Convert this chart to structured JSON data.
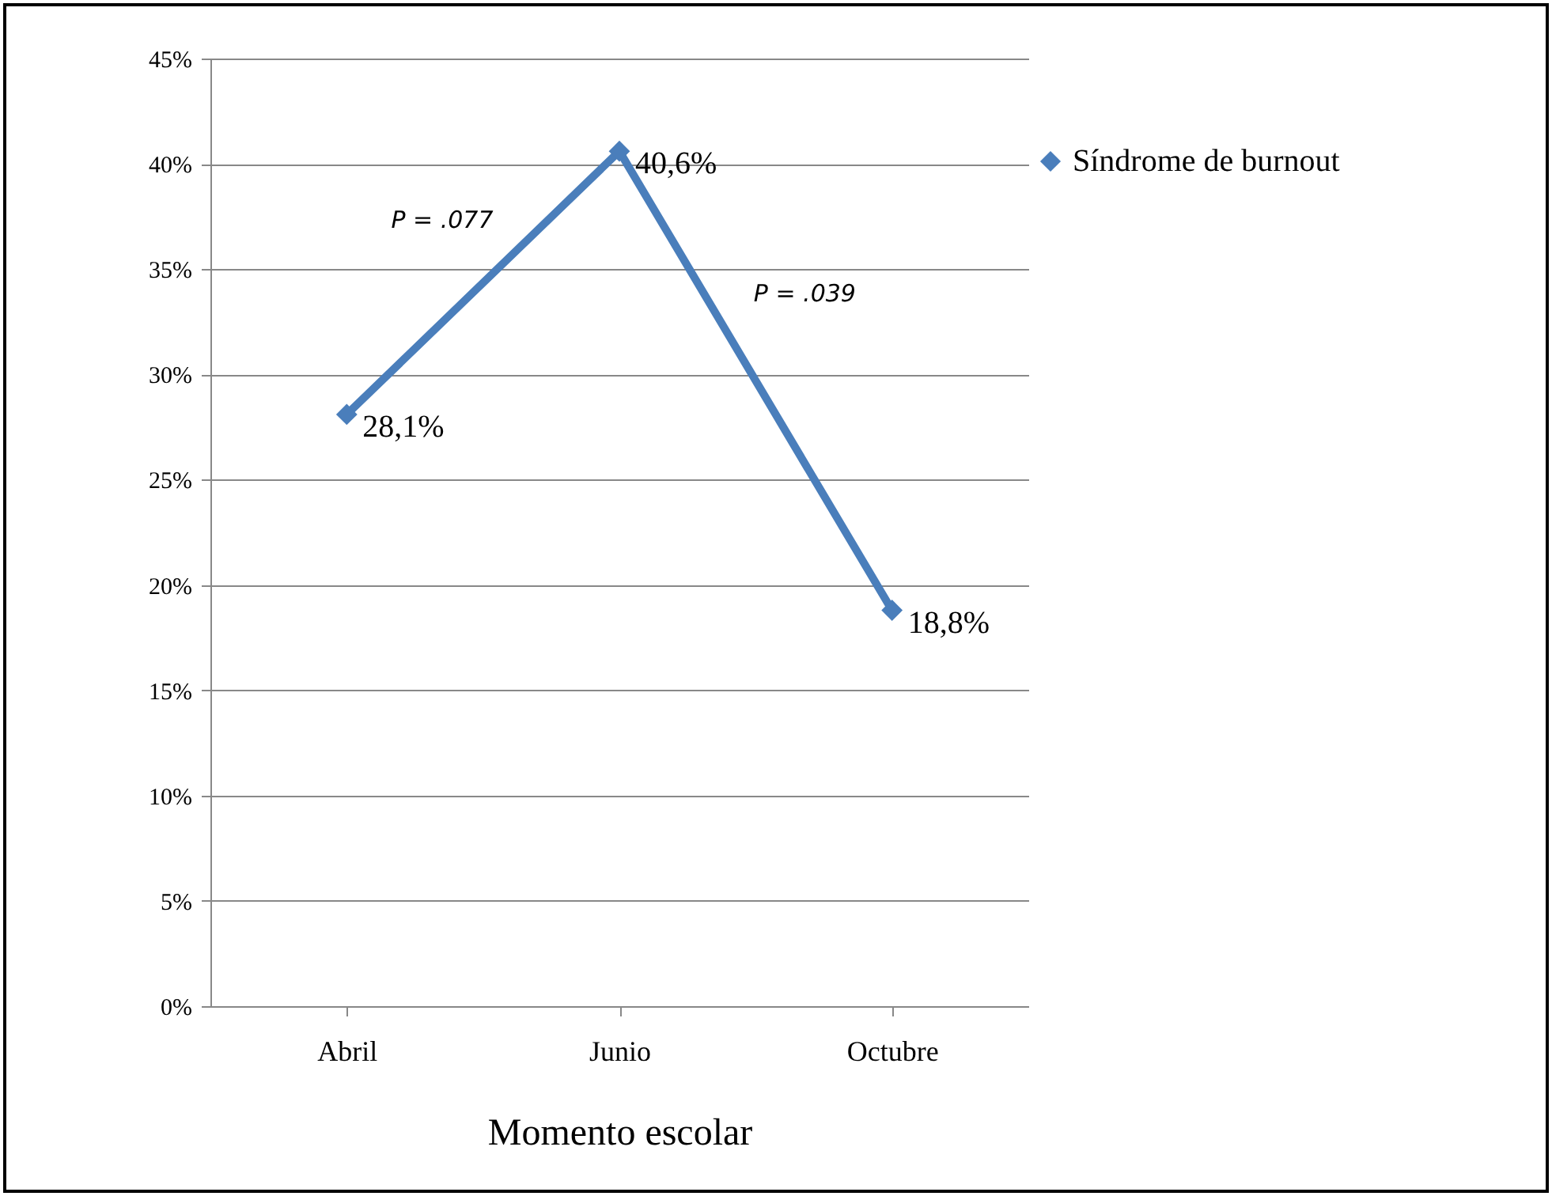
{
  "chart_data": {
    "type": "line",
    "xlabel": "Momento escolar",
    "categories": [
      "Abril",
      "Junio",
      "Octubre"
    ],
    "series": [
      {
        "name": "Síndrome de burnout",
        "color": "#4a7ebb",
        "values": [
          28.1,
          40.6,
          18.8
        ],
        "value_labels": [
          "28,1%",
          "40,6%",
          "18,8%"
        ]
      }
    ],
    "ylim": [
      0,
      45
    ],
    "yticks": [
      {
        "value": 0,
        "label": "0%"
      },
      {
        "value": 5,
        "label": "5%"
      },
      {
        "value": 10,
        "label": "10%"
      },
      {
        "value": 15,
        "label": "15%"
      },
      {
        "value": 20,
        "label": "20%"
      },
      {
        "value": 25,
        "label": "25%"
      },
      {
        "value": 30,
        "label": "30%"
      },
      {
        "value": 35,
        "label": "35%"
      },
      {
        "value": 40,
        "label": "40%"
      },
      {
        "value": 45,
        "label": "45%"
      }
    ],
    "annotations": [
      "P = .077",
      "P = .039"
    ],
    "grid": "y",
    "legend": "right",
    "marker": "diamond",
    "line_style": "solid"
  }
}
